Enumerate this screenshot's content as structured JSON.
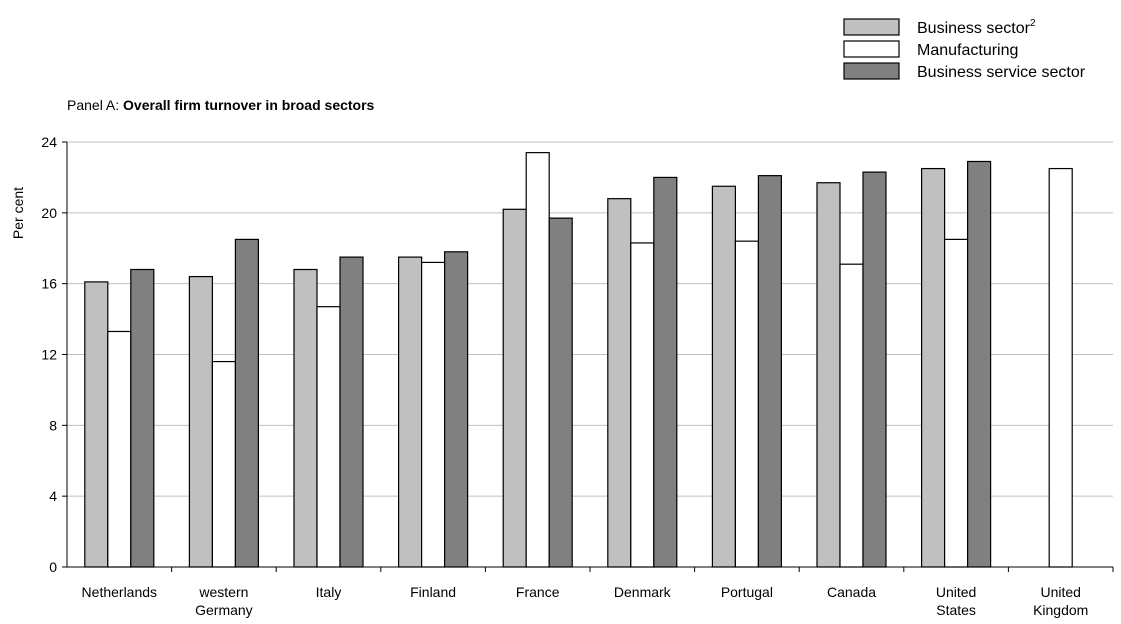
{
  "chart_data": {
    "type": "bar",
    "title_prefix": "Panel A: ",
    "title_bold": "Overall firm turnover in broad sectors",
    "ylabel": "Per cent",
    "xlabel": "",
    "ylim": [
      0,
      24
    ],
    "yticks": [
      "0",
      "4",
      "8",
      "12",
      "16",
      "20",
      "24"
    ],
    "grid": true,
    "legend_position": "top-right",
    "categories": [
      [
        "Netherlands"
      ],
      [
        "western",
        "Germany"
      ],
      [
        "Italy"
      ],
      [
        "Finland"
      ],
      [
        "France"
      ],
      [
        "Denmark"
      ],
      [
        "Portugal"
      ],
      [
        "Canada"
      ],
      [
        "United",
        "States"
      ],
      [
        "United",
        "Kingdom"
      ]
    ],
    "series": [
      {
        "name": "Business sector",
        "name_sup": "2",
        "color": "#c0c0c0",
        "values": [
          16.1,
          16.4,
          16.8,
          17.5,
          20.2,
          20.8,
          21.5,
          21.7,
          22.5,
          null
        ]
      },
      {
        "name": "Manufacturing",
        "name_sup": "",
        "color": "#ffffff",
        "values": [
          13.3,
          11.6,
          14.7,
          17.2,
          23.4,
          18.3,
          18.4,
          17.1,
          18.5,
          22.5
        ]
      },
      {
        "name": "Business service sector",
        "name_sup": "",
        "color": "#808080",
        "values": [
          16.8,
          18.5,
          17.5,
          17.8,
          19.7,
          22.0,
          22.1,
          22.3,
          22.9,
          null
        ]
      }
    ]
  }
}
